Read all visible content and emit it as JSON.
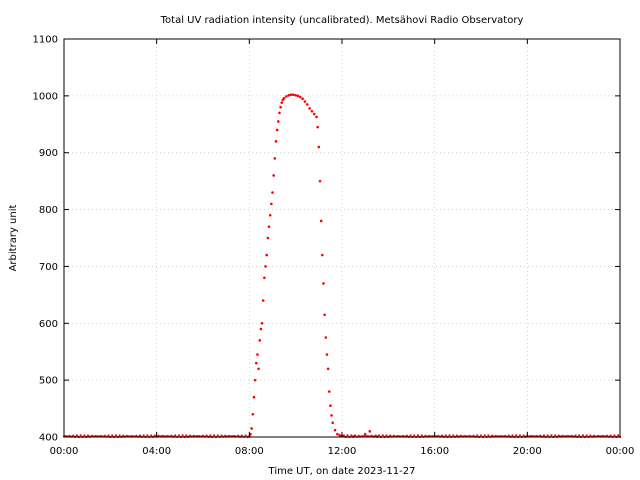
{
  "chart_data": {
    "type": "scatter",
    "title": "Total UV radiation intensity (uncalibrated). Metsähovi Radio Observatory",
    "xlabel": "Time UT, on date 2023-11-27",
    "ylabel": "Arbitrary unit",
    "xlim": [
      0,
      24
    ],
    "ylim": [
      400,
      1100
    ],
    "xticks": [
      {
        "value": 0,
        "label": "00:00"
      },
      {
        "value": 4,
        "label": "04:00"
      },
      {
        "value": 8,
        "label": "08:00"
      },
      {
        "value": 12,
        "label": "12:00"
      },
      {
        "value": 16,
        "label": "16:00"
      },
      {
        "value": 20,
        "label": "20:00"
      },
      {
        "value": 24,
        "label": "00:00"
      }
    ],
    "yticks": [
      400,
      500,
      600,
      700,
      800,
      900,
      1000,
      1100
    ],
    "grid": true,
    "marker_color": "#ff0000",
    "series": [
      {
        "name": "",
        "x_unit": "hours UT",
        "points": [
          [
            8.0,
            401
          ],
          [
            8.05,
            405
          ],
          [
            8.1,
            415
          ],
          [
            8.15,
            440
          ],
          [
            8.2,
            470
          ],
          [
            8.25,
            500
          ],
          [
            8.3,
            530
          ],
          [
            8.35,
            545
          ],
          [
            8.4,
            520
          ],
          [
            8.45,
            570
          ],
          [
            8.5,
            590
          ],
          [
            8.55,
            600
          ],
          [
            8.6,
            640
          ],
          [
            8.65,
            680
          ],
          [
            8.7,
            700
          ],
          [
            8.75,
            720
          ],
          [
            8.8,
            750
          ],
          [
            8.85,
            770
          ],
          [
            8.9,
            790
          ],
          [
            8.95,
            810
          ],
          [
            9.0,
            830
          ],
          [
            9.05,
            860
          ],
          [
            9.1,
            890
          ],
          [
            9.15,
            920
          ],
          [
            9.2,
            940
          ],
          [
            9.25,
            955
          ],
          [
            9.3,
            970
          ],
          [
            9.35,
            980
          ],
          [
            9.4,
            988
          ],
          [
            9.45,
            993
          ],
          [
            9.5,
            996
          ],
          [
            9.6,
            999
          ],
          [
            9.7,
            1001
          ],
          [
            9.8,
            1002
          ],
          [
            9.9,
            1002
          ],
          [
            10.0,
            1001
          ],
          [
            10.1,
            1000
          ],
          [
            10.2,
            998
          ],
          [
            10.3,
            995
          ],
          [
            10.4,
            990
          ],
          [
            10.5,
            985
          ],
          [
            10.6,
            978
          ],
          [
            10.7,
            973
          ],
          [
            10.8,
            968
          ],
          [
            10.9,
            963
          ],
          [
            10.95,
            945
          ],
          [
            11.0,
            910
          ],
          [
            11.05,
            850
          ],
          [
            11.1,
            780
          ],
          [
            11.15,
            720
          ],
          [
            11.2,
            670
          ],
          [
            11.25,
            615
          ],
          [
            11.3,
            575
          ],
          [
            11.35,
            545
          ],
          [
            11.4,
            520
          ],
          [
            11.45,
            480
          ],
          [
            11.5,
            455
          ],
          [
            11.55,
            438
          ],
          [
            11.6,
            425
          ],
          [
            11.7,
            412
          ],
          [
            11.8,
            405
          ],
          [
            11.9,
            403
          ],
          [
            12.0,
            402
          ],
          [
            12.5,
            401
          ],
          [
            13.0,
            405
          ],
          [
            13.2,
            410
          ],
          [
            13.5,
            401
          ]
        ]
      }
    ]
  }
}
